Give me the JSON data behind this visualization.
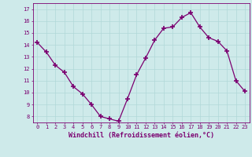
{
  "x": [
    0,
    1,
    2,
    3,
    4,
    5,
    6,
    7,
    8,
    9,
    10,
    11,
    12,
    13,
    14,
    15,
    16,
    17,
    18,
    19,
    20,
    21,
    22,
    23
  ],
  "y": [
    14.2,
    13.4,
    12.3,
    11.7,
    10.5,
    9.9,
    9.0,
    8.0,
    7.8,
    7.6,
    9.5,
    11.5,
    12.9,
    14.4,
    15.4,
    15.5,
    16.3,
    16.7,
    15.5,
    14.6,
    14.3,
    13.5,
    11.0,
    10.1
  ],
  "line_color": "#7b0070",
  "marker": "+",
  "marker_size": 4,
  "bg_color": "#ceeaea",
  "grid_color": "#b0d8d8",
  "xlabel": "Windchill (Refroidissement éolien,°C)",
  "ylim": [
    7.5,
    17.5
  ],
  "xlim": [
    -0.5,
    23.5
  ],
  "yticks": [
    8,
    9,
    10,
    11,
    12,
    13,
    14,
    15,
    16,
    17
  ],
  "xticks": [
    0,
    1,
    2,
    3,
    4,
    5,
    6,
    7,
    8,
    9,
    10,
    11,
    12,
    13,
    14,
    15,
    16,
    17,
    18,
    19,
    20,
    21,
    22,
    23
  ],
  "tick_fontsize": 5,
  "label_fontsize": 6,
  "linewidth": 0.9,
  "marker_linewidth": 1.2
}
